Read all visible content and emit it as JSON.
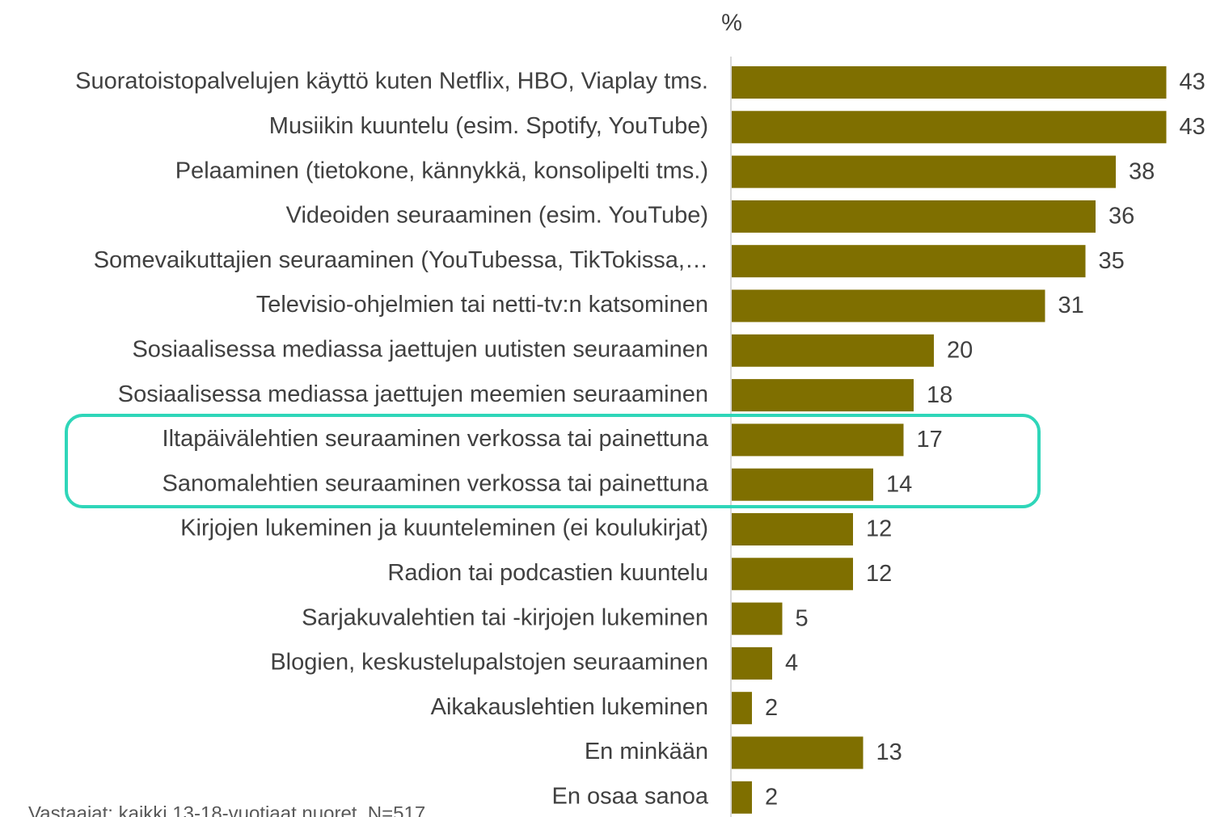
{
  "chart_data": {
    "type": "bar",
    "orientation": "horizontal",
    "title": "%",
    "categories": [
      "Suoratoistopalvelujen käyttö kuten Netflix, HBO, Viaplay tms.",
      "Musiikin kuuntelu (esim. Spotify, YouTube)",
      "Pelaaminen (tietokone, kännykkä, konsolipelti tms.)",
      "Videoiden seuraaminen (esim. YouTube)",
      "Somevaikuttajien seuraaminen (YouTubessa, TikTokissa,…",
      "Televisio-ohjelmien tai netti-tv:n katsominen",
      "Sosiaalisessa mediassa jaettujen uutisten seuraaminen",
      "Sosiaalisessa mediassa jaettujen meemien seuraaminen",
      "Iltapäivälehtien seuraaminen verkossa tai painettuna",
      "Sanomalehtien seuraaminen verkossa tai painettuna",
      "Kirjojen lukeminen ja kuunteleminen (ei koulukirjat)",
      "Radion tai podcastien kuuntelu",
      "Sarjakuvalehtien tai -kirjojen lukeminen",
      "Blogien, keskustelupalstojen seuraaminen",
      "Aikakauslehtien lukeminen",
      "En minkään",
      "En osaa sanoa"
    ],
    "values": [
      43,
      43,
      38,
      36,
      35,
      31,
      20,
      18,
      17,
      14,
      12,
      12,
      5,
      4,
      2,
      13,
      2
    ],
    "color": "#7f6f00",
    "footnote": "Vastaajat: kaikki 13-18-vuotiaat nuoret, N=517"
  }
}
